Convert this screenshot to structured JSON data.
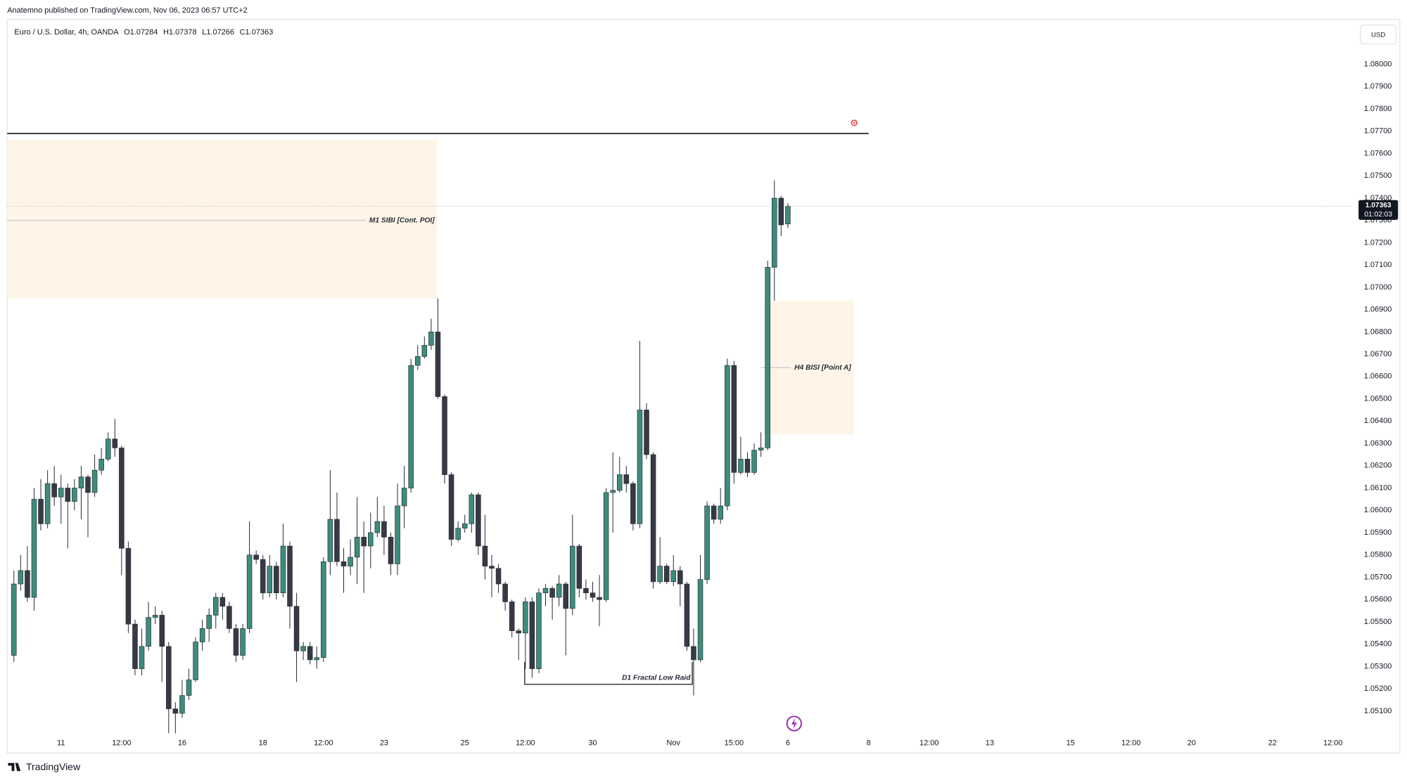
{
  "header": {
    "published": "Anatemno published on TradingView.com, Nov 06, 2023 06:57 UTC+2"
  },
  "footer": {
    "brand": "TradingView"
  },
  "chart_data": {
    "type": "candlestick",
    "title": "Euro / U.S. Dollar, 4h, OANDA",
    "legend_values": [
      "O1.07284",
      "H1.07378",
      "L1.07266",
      "C1.07363"
    ],
    "currency": "USD",
    "countdown": "01:02:03",
    "up_color": "#3d8c7c",
    "down_color": "#373a45",
    "grid": false,
    "xlim": [
      -1,
      199
    ],
    "ylim": [
      1.05,
      1.082
    ],
    "xticks": [
      {
        "value": 7,
        "label": "11"
      },
      {
        "value": 16,
        "label": "12:00"
      },
      {
        "value": 25,
        "label": "16"
      },
      {
        "value": 37,
        "label": "18"
      },
      {
        "value": 46,
        "label": "12:00"
      },
      {
        "value": 55,
        "label": "23"
      },
      {
        "value": 67,
        "label": "25"
      },
      {
        "value": 76,
        "label": "12:00"
      },
      {
        "value": 86,
        "label": "30"
      },
      {
        "value": 98,
        "label": "Nov"
      },
      {
        "value": 107,
        "label": "15:00"
      },
      {
        "value": 115,
        "label": "6"
      },
      {
        "value": 127,
        "label": "8"
      },
      {
        "value": 136,
        "label": "12:00"
      },
      {
        "value": 145,
        "label": "13"
      },
      {
        "value": 157,
        "label": "15"
      },
      {
        "value": 166,
        "label": "12:00"
      },
      {
        "value": 175,
        "label": "20"
      },
      {
        "value": 187,
        "label": "22"
      },
      {
        "value": 196,
        "label": "12:00"
      }
    ],
    "yticks": [
      {
        "value": 1.051,
        "label": "1.05100"
      },
      {
        "value": 1.052,
        "label": "1.05200"
      },
      {
        "value": 1.053,
        "label": "1.05300"
      },
      {
        "value": 1.054,
        "label": "1.05400"
      },
      {
        "value": 1.055,
        "label": "1.05500"
      },
      {
        "value": 1.056,
        "label": "1.05600"
      },
      {
        "value": 1.057,
        "label": "1.05700"
      },
      {
        "value": 1.058,
        "label": "1.05800"
      },
      {
        "value": 1.059,
        "label": "1.05900"
      },
      {
        "value": 1.06,
        "label": "1.06000"
      },
      {
        "value": 1.061,
        "label": "1.06100"
      },
      {
        "value": 1.062,
        "label": "1.06200"
      },
      {
        "value": 1.063,
        "label": "1.06300"
      },
      {
        "value": 1.064,
        "label": "1.06400"
      },
      {
        "value": 1.065,
        "label": "1.06500"
      },
      {
        "value": 1.066,
        "label": "1.06600"
      },
      {
        "value": 1.067,
        "label": "1.06700"
      },
      {
        "value": 1.068,
        "label": "1.06800"
      },
      {
        "value": 1.069,
        "label": "1.06900"
      },
      {
        "value": 1.07,
        "label": "1.07000"
      },
      {
        "value": 1.071,
        "label": "1.07100"
      },
      {
        "value": 1.072,
        "label": "1.07200"
      },
      {
        "value": 1.073,
        "label": "1.07300"
      },
      {
        "value": 1.074,
        "label": "1.07400"
      },
      {
        "value": 1.075,
        "label": "1.07500"
      },
      {
        "value": 1.076,
        "label": "1.07600"
      },
      {
        "value": 1.077,
        "label": "1.07700"
      },
      {
        "value": 1.078,
        "label": "1.07800"
      },
      {
        "value": 1.079,
        "label": "1.07900"
      },
      {
        "value": 1.08,
        "label": "1.08000"
      }
    ],
    "open": [
      1.0535,
      1.0567,
      1.0573,
      1.0561,
      1.0605,
      1.0594,
      1.0612,
      1.0606,
      1.061,
      1.0604,
      1.061,
      1.0615,
      1.0608,
      1.0618,
      1.0623,
      1.0632,
      1.0628,
      1.0583,
      1.0549,
      1.0529,
      1.0539,
      1.0552,
      1.0553,
      1.0539,
      1.0511,
      1.0509,
      1.0517,
      1.0524,
      1.0541,
      1.0547,
      1.0553,
      1.0561,
      1.0557,
      1.0547,
      1.0535,
      1.0547,
      1.058,
      1.0578,
      1.0563,
      1.0575,
      1.0563,
      1.0584,
      1.0557,
      1.0537,
      1.0539,
      1.0533,
      1.0534,
      1.0577,
      1.0596,
      1.0577,
      1.0575,
      1.0579,
      1.0588,
      1.0584,
      1.059,
      1.0595,
      1.0588,
      1.0576,
      1.0602,
      1.061,
      1.0665,
      1.0669,
      1.0674,
      1.068,
      1.0651,
      1.0616,
      1.0587,
      1.0592,
      1.0594,
      1.0607,
      1.0584,
      1.0575,
      1.0574,
      1.0567,
      1.0559,
      1.0546,
      1.0545,
      1.0559,
      1.0529,
      1.0563,
      1.0565,
      1.0561,
      1.0567,
      1.0556,
      1.0584,
      1.0565,
      1.0563,
      1.0561,
      1.056,
      1.0608,
      1.0609,
      1.0616,
      1.0612,
      1.0594,
      1.0645,
      1.0625,
      1.0568,
      1.0575,
      1.0568,
      1.0573,
      1.0567,
      1.0539,
      1.0533,
      1.0569,
      1.0602,
      1.0596,
      1.0602,
      1.0665,
      1.0617,
      1.0623,
      1.0617,
      1.0627,
      1.0628,
      1.0709,
      1.074,
      1.07284
    ],
    "high": [
      1.0573,
      1.058,
      1.0584,
      1.061,
      1.0614,
      1.0618,
      1.062,
      1.0616,
      1.0612,
      1.0614,
      1.062,
      1.0616,
      1.0625,
      1.0628,
      1.0635,
      1.0641,
      1.0629,
      1.0586,
      1.0551,
      1.0547,
      1.0559,
      1.0557,
      1.0555,
      1.0541,
      1.0514,
      1.0524,
      1.0529,
      1.0543,
      1.0551,
      1.0556,
      1.0563,
      1.0563,
      1.0559,
      1.0549,
      1.0549,
      1.0595,
      1.0582,
      1.058,
      1.058,
      1.0577,
      1.0594,
      1.0586,
      1.0563,
      1.0541,
      1.0541,
      1.0539,
      1.0579,
      1.0618,
      1.0608,
      1.0583,
      1.0587,
      1.0606,
      1.0595,
      1.0599,
      1.0606,
      1.0602,
      1.059,
      1.0612,
      1.062,
      1.0668,
      1.0674,
      1.0678,
      1.0686,
      1.0695,
      1.0652,
      1.0617,
      1.0595,
      1.0598,
      1.0608,
      1.0608,
      1.0598,
      1.058,
      1.0576,
      1.0568,
      1.056,
      1.0547,
      1.0561,
      1.0561,
      1.0565,
      1.0567,
      1.0566,
      1.0571,
      1.0568,
      1.0598,
      1.0585,
      1.0569,
      1.0568,
      1.0571,
      1.061,
      1.0626,
      1.0624,
      1.062,
      1.0613,
      1.0676,
      1.0648,
      1.0626,
      1.0588,
      1.0576,
      1.058,
      1.0575,
      1.0568,
      1.0547,
      1.058,
      1.0604,
      1.0603,
      1.061,
      1.0668,
      1.0667,
      1.0633,
      1.0626,
      1.063,
      1.0635,
      1.0712,
      1.0748,
      1.0741,
      1.07378
    ],
    "low": [
      1.0532,
      1.0564,
      1.0559,
      1.0555,
      1.0591,
      1.0592,
      1.0602,
      1.0594,
      1.0583,
      1.06,
      1.0596,
      1.0588,
      1.0606,
      1.0616,
      1.0622,
      1.0624,
      1.0571,
      1.0545,
      1.0526,
      1.0526,
      1.0537,
      1.0549,
      1.0523,
      1.05,
      1.05,
      1.0507,
      1.0515,
      1.0523,
      1.0537,
      1.0541,
      1.0547,
      1.0551,
      1.0545,
      1.0532,
      1.0533,
      1.0545,
      1.0576,
      1.056,
      1.0561,
      1.056,
      1.0561,
      1.0547,
      1.0523,
      1.0533,
      1.0531,
      1.0529,
      1.0532,
      1.0571,
      1.0575,
      1.0563,
      1.0571,
      1.0567,
      1.0563,
      1.0574,
      1.0588,
      1.058,
      1.0571,
      1.0571,
      1.0592,
      1.0608,
      1.0663,
      1.0668,
      1.0672,
      1.065,
      1.0612,
      1.0584,
      1.0586,
      1.059,
      1.059,
      1.058,
      1.0569,
      1.0561,
      1.0563,
      1.0555,
      1.0543,
      1.0533,
      1.0529,
      1.0525,
      1.0527,
      1.0557,
      1.0551,
      1.0557,
      1.0535,
      1.0553,
      1.0561,
      1.056,
      1.0559,
      1.0548,
      1.0559,
      1.059,
      1.0608,
      1.0608,
      1.0591,
      1.0592,
      1.0623,
      1.0565,
      1.0567,
      1.0567,
      1.0566,
      1.0557,
      1.0537,
      1.0517,
      1.0532,
      1.0567,
      1.0594,
      1.0594,
      1.06,
      1.0612,
      1.0616,
      1.0615,
      1.0616,
      1.0624,
      1.0627,
      1.0694,
      1.0723,
      1.07266
    ],
    "close": [
      1.0567,
      1.0573,
      1.0561,
      1.0605,
      1.0594,
      1.0612,
      1.0606,
      1.061,
      1.0604,
      1.061,
      1.0615,
      1.0608,
      1.0618,
      1.0623,
      1.0632,
      1.0628,
      1.0583,
      1.0549,
      1.0529,
      1.0539,
      1.0552,
      1.0553,
      1.0539,
      1.0511,
      1.0509,
      1.0517,
      1.0524,
      1.0541,
      1.0547,
      1.0553,
      1.0561,
      1.0557,
      1.0547,
      1.0535,
      1.0547,
      1.058,
      1.0578,
      1.0563,
      1.0575,
      1.0563,
      1.0584,
      1.0557,
      1.0537,
      1.0539,
      1.0533,
      1.0534,
      1.0577,
      1.0596,
      1.0577,
      1.0575,
      1.0579,
      1.0588,
      1.0584,
      1.059,
      1.0595,
      1.0588,
      1.0576,
      1.0602,
      1.061,
      1.0665,
      1.0669,
      1.0674,
      1.068,
      1.0651,
      1.0616,
      1.0587,
      1.0592,
      1.0594,
      1.0607,
      1.0584,
      1.0575,
      1.0574,
      1.0567,
      1.0559,
      1.0546,
      1.0545,
      1.0559,
      1.0529,
      1.0563,
      1.0565,
      1.0561,
      1.0567,
      1.0556,
      1.0584,
      1.0565,
      1.0563,
      1.0561,
      1.056,
      1.0608,
      1.0609,
      1.0616,
      1.0612,
      1.0594,
      1.0645,
      1.0625,
      1.0568,
      1.0575,
      1.0568,
      1.0573,
      1.0567,
      1.0539,
      1.0533,
      1.0569,
      1.0602,
      1.0596,
      1.0602,
      1.0665,
      1.0617,
      1.0623,
      1.0617,
      1.0627,
      1.0628,
      1.0709,
      1.074,
      1.0728,
      1.07363
    ],
    "horizontal_line": {
      "y": 1.0769,
      "x_range": [
        -1,
        127
      ]
    },
    "zones": [
      {
        "label": "M1 SIBI [Cont. POI]",
        "x_range": [
          -1,
          62.9
        ],
        "y_range": [
          1.0695,
          1.0766
        ],
        "line_y": 1.073
      },
      {
        "label": "H4 BISI [Point A]",
        "x_range": [
          111.5,
          124.8
        ],
        "y_range": [
          1.0634,
          1.0694
        ],
        "line_y": 1.0664
      }
    ],
    "bracket": {
      "label": "D1 Fractal Low Raid",
      "x_range": [
        75.9,
        100.8
      ],
      "y": 1.0522,
      "y_top": 1.0532
    }
  }
}
